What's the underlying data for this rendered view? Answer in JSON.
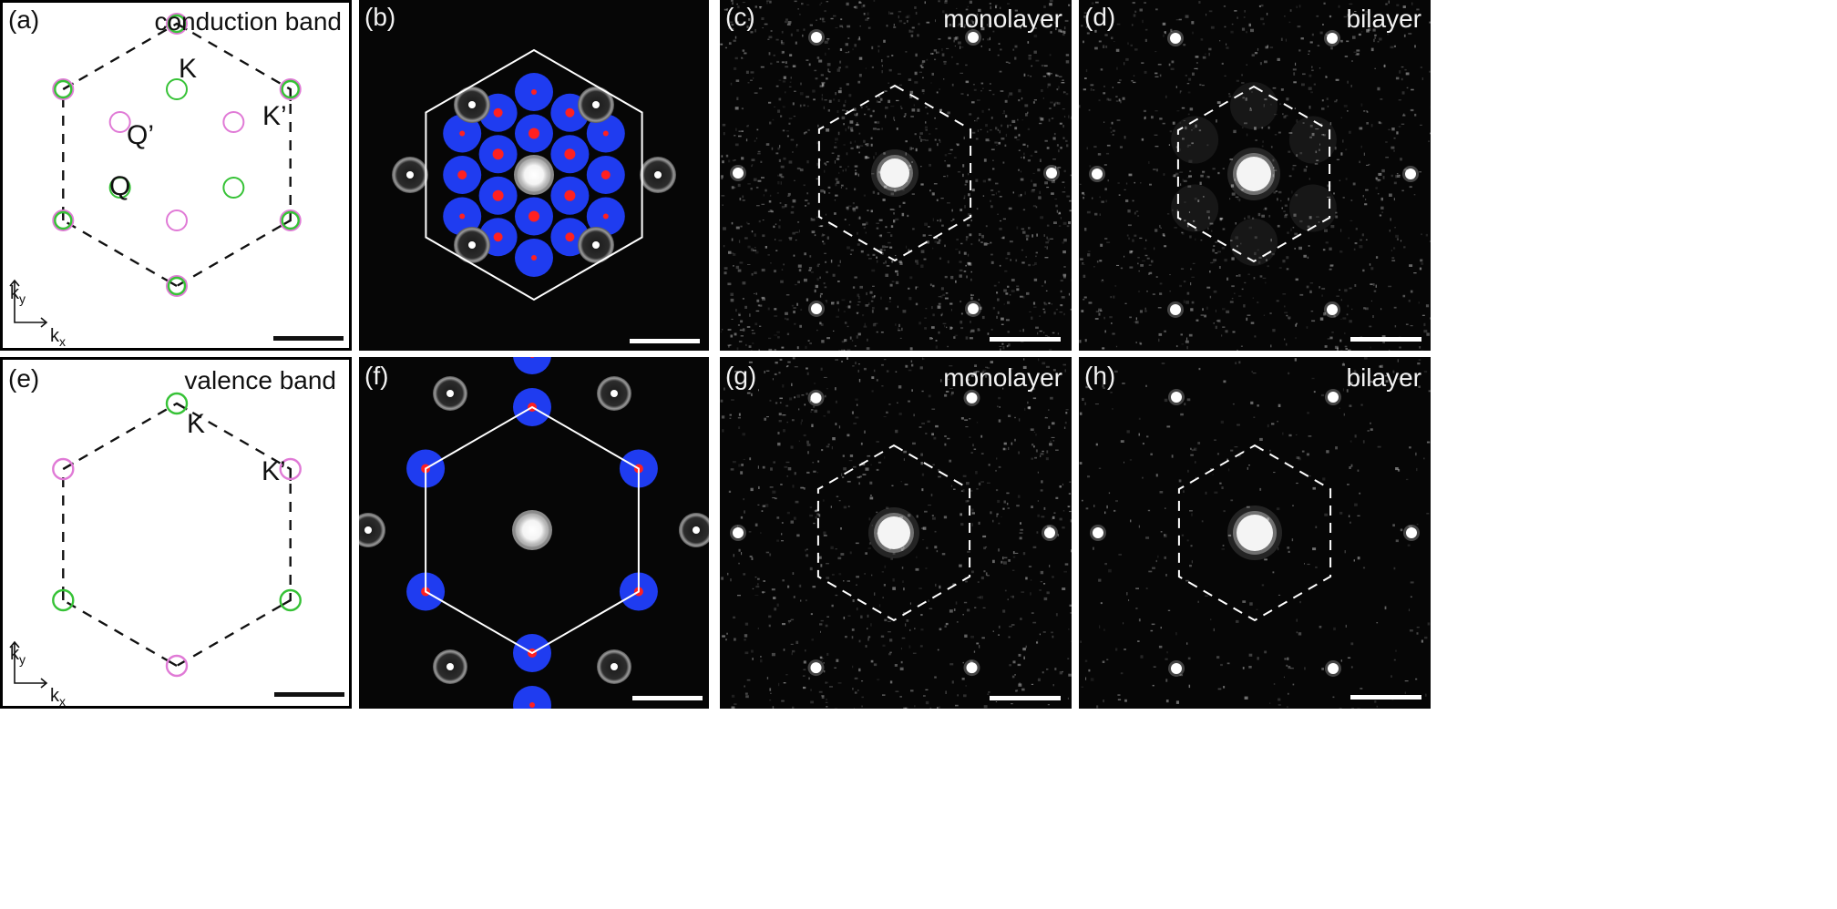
{
  "panels": {
    "a": {
      "label": "(a)",
      "title": "conduction band",
      "points": {
        "K": "K",
        "Kp": "K’",
        "Q": "Q",
        "Qp": "Q’"
      }
    },
    "b": {
      "label": "(b)"
    },
    "c": {
      "label": "(c)",
      "title": "monolayer"
    },
    "d": {
      "label": "(d)",
      "title": "bilayer"
    },
    "e": {
      "label": "(e)",
      "title": "valence band",
      "points": {
        "K": "K",
        "Kp": "K’"
      }
    },
    "f": {
      "label": "(f)"
    },
    "g": {
      "label": "(g)",
      "title": "monolayer"
    },
    "h": {
      "label": "(h)",
      "title": "bilayer"
    }
  },
  "axes": {
    "kx": "k",
    "kx_sub": "x",
    "ky": "k",
    "ky_sub": "y"
  },
  "colors": {
    "valley_green": "#36c236",
    "valley_pink": "#e07ad6",
    "spot_blue": "#1f3cf0",
    "spot_red": "#ff2020",
    "background_dark": "#060606"
  }
}
